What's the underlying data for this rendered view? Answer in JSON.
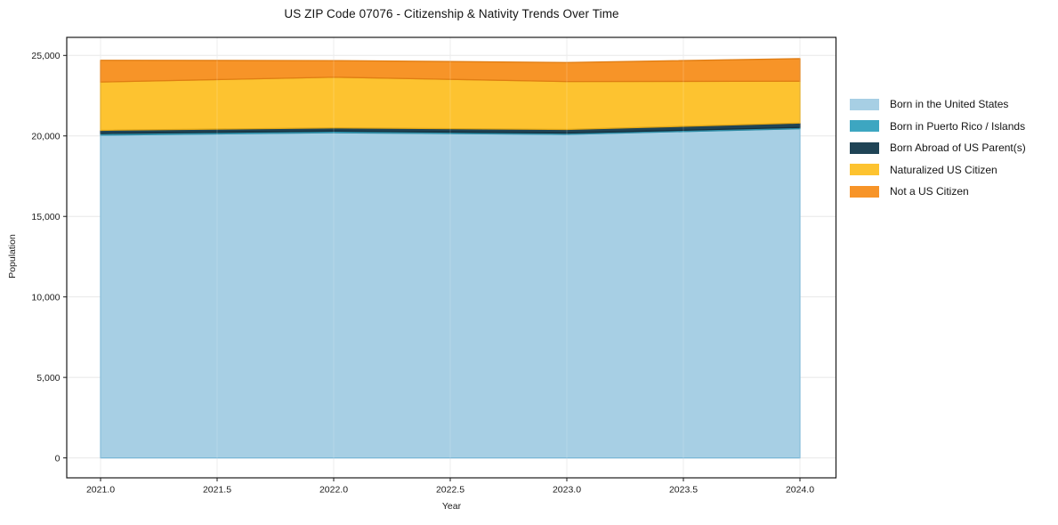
{
  "chart_data": {
    "type": "area",
    "stacked": true,
    "title": "US ZIP Code 07076 - Citizenship & Nativity Trends Over Time",
    "xlabel": "Year",
    "ylabel": "Population",
    "x": [
      2021,
      2022,
      2023,
      2024
    ],
    "series": [
      {
        "name": "Born in the United States",
        "color": "#a7cfe4",
        "edge": "#79b6d6",
        "values": [
          20050,
          20200,
          20100,
          20450
        ]
      },
      {
        "name": "Born in Puerto Rico / Islands",
        "color": "#3da6c1",
        "edge": "#2c8aa3",
        "values": [
          100,
          100,
          80,
          80
        ]
      },
      {
        "name": "Born Abroad of US Parent(s)",
        "color": "#1f4456",
        "edge": "#152f3c",
        "values": [
          200,
          200,
          220,
          270
        ]
      },
      {
        "name": "Naturalized US Citizen",
        "color": "#fdc330",
        "edge": "#e0a616",
        "values": [
          3000,
          3150,
          2980,
          2600
        ]
      },
      {
        "name": "Not a US Citizen",
        "color": "#f79428",
        "edge": "#e07d13",
        "values": [
          1350,
          1030,
          1180,
          1400
        ]
      }
    ],
    "totals": [
      24700,
      24680,
      24560,
      24800
    ],
    "x_ticks": [
      2021.0,
      2021.5,
      2022.0,
      2022.5,
      2023.0,
      2023.5,
      2024.0
    ],
    "x_tick_labels": [
      "2021.0",
      "2021.5",
      "2022.0",
      "2022.5",
      "2023.0",
      "2023.5",
      "2024.0"
    ],
    "y_ticks": [
      0,
      5000,
      10000,
      15000,
      20000,
      25000
    ],
    "y_tick_labels": [
      "0",
      "5,000",
      "10,000",
      "15,000",
      "20,000",
      "25,000"
    ],
    "xlim": [
      2021,
      2024
    ],
    "ylim": [
      0,
      25000
    ],
    "grid": true,
    "grid_color": "#e8e8e8",
    "spine_color": "#1a1a1a",
    "legend_position": "right"
  }
}
